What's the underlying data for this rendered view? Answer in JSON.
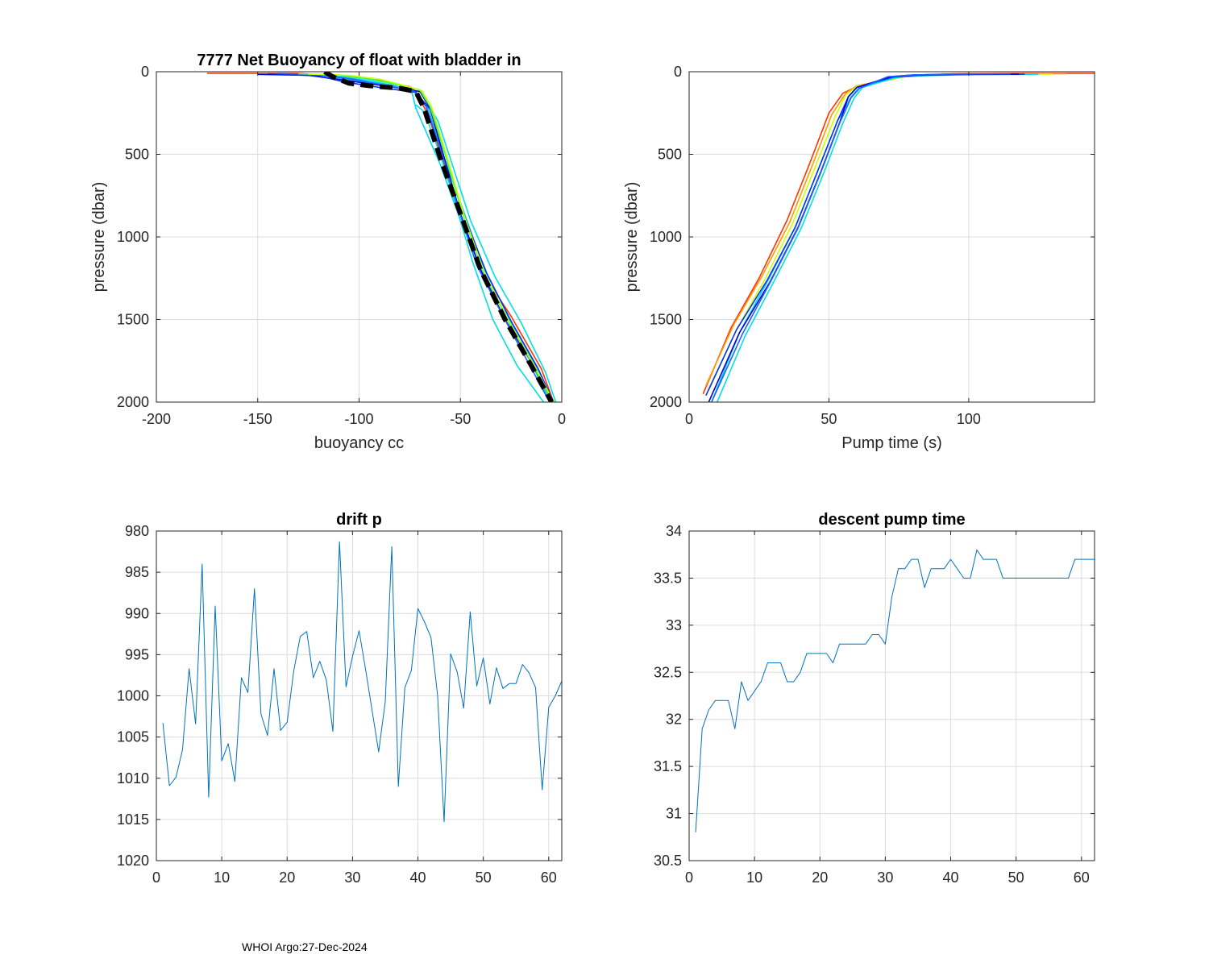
{
  "footer": "WHOI Argo:27-Dec-2024",
  "chart_data": [
    {
      "id": "buoyancy",
      "type": "line",
      "title": "7777 Net Buoyancy of float with bladder in",
      "xlabel": "buoyancy cc",
      "ylabel": "pressure (dbar)",
      "xlim": [
        -200,
        0
      ],
      "ylim": [
        0,
        2000
      ],
      "y_reversed": true,
      "xticks": [
        -200,
        -150,
        -100,
        -50,
        0
      ],
      "yticks": [
        0,
        500,
        1000,
        1500,
        2000
      ],
      "grid": true,
      "series": [
        {
          "color": "#ff3300",
          "x": [
            -175,
            -150,
            -130,
            -95,
            -75,
            -72,
            -66,
            -58,
            -50,
            -40,
            -25,
            -10,
            -4
          ],
          "y": [
            10,
            10,
            10,
            40,
            90,
            120,
            260,
            560,
            870,
            1200,
            1480,
            1800,
            2000
          ]
        },
        {
          "color": "#00e0e0",
          "x": [
            -150,
            -128,
            -100,
            -80,
            -70,
            -68,
            -61,
            -53,
            -45,
            -33,
            -20,
            -8,
            -3
          ],
          "y": [
            12,
            15,
            35,
            80,
            110,
            150,
            300,
            600,
            900,
            1240,
            1520,
            1820,
            2000
          ]
        },
        {
          "color": "#00d4ff",
          "x": [
            -150,
            -125,
            -100,
            -82,
            -74,
            -72,
            -60,
            -50,
            -38,
            -25,
            -15,
            -6
          ],
          "y": [
            15,
            20,
            45,
            85,
            120,
            220,
            560,
            900,
            1250,
            1520,
            1760,
            2000
          ]
        },
        {
          "color": "#1ab8e8",
          "x": [
            -148,
            -120,
            -105,
            -85,
            -72,
            -66,
            -58,
            -48,
            -38,
            -25,
            -13,
            -5
          ],
          "y": [
            14,
            18,
            50,
            80,
            120,
            220,
            520,
            860,
            1200,
            1510,
            1780,
            2000
          ]
        },
        {
          "color": "#0000cc",
          "x": [
            -150,
            -125,
            -105,
            -85,
            -70,
            -65,
            -58,
            -50,
            -40,
            -28,
            -15,
            -5
          ],
          "y": [
            16,
            22,
            55,
            90,
            120,
            220,
            520,
            860,
            1200,
            1500,
            1760,
            2000
          ]
        },
        {
          "color": "#0033ff",
          "x": [
            -145,
            -120,
            -108,
            -90,
            -72,
            -64,
            -56,
            -48,
            -37,
            -25,
            -12,
            -4
          ],
          "y": [
            12,
            25,
            60,
            95,
            125,
            240,
            560,
            880,
            1220,
            1510,
            1790,
            2000
          ]
        },
        {
          "color": "#2060ff",
          "x": [
            -140,
            -118,
            -102,
            -86,
            -73,
            -67,
            -59,
            -51,
            -42,
            -29,
            -17,
            -6
          ],
          "y": [
            10,
            20,
            48,
            86,
            118,
            210,
            500,
            830,
            1170,
            1480,
            1750,
            2000
          ]
        },
        {
          "color": "#40ff40",
          "x": [
            -130,
            -110,
            -95,
            -80,
            -70,
            -65,
            -57,
            -49,
            -39,
            -27,
            -14,
            -5
          ],
          "y": [
            12,
            20,
            42,
            80,
            112,
            210,
            520,
            860,
            1200,
            1500,
            1780,
            2000
          ]
        },
        {
          "color": "#ccff00",
          "x": [
            -125,
            -105,
            -90,
            -78,
            -69,
            -64,
            -56,
            -48,
            -38,
            -26,
            -13,
            -4
          ],
          "y": [
            14,
            22,
            45,
            82,
            115,
            220,
            540,
            880,
            1220,
            1510,
            1790,
            2000
          ]
        },
        {
          "color": "#00e0e0",
          "x": [
            -72,
            -68,
            -60,
            -52,
            -44,
            -34,
            -22,
            -9
          ],
          "y": [
            200,
            240,
            500,
            820,
            1150,
            1500,
            1780,
            2000
          ]
        },
        {
          "color": "#000000",
          "dashed": true,
          "width": 6,
          "x": [
            -117,
            -113,
            -105,
            -95,
            -80,
            -72,
            -68,
            -60,
            -50,
            -40,
            -28,
            -15,
            -5
          ],
          "y": [
            0,
            30,
            70,
            85,
            100,
            120,
            220,
            520,
            860,
            1200,
            1500,
            1780,
            2000
          ]
        }
      ]
    },
    {
      "id": "pump",
      "type": "line",
      "title": "",
      "xlabel": "Pump time (s)",
      "ylabel": "pressure (dbar)",
      "xlim": [
        0,
        145
      ],
      "ylim": [
        0,
        2000
      ],
      "y_reversed": true,
      "xticks": [
        0,
        50,
        100
      ],
      "yticks": [
        0,
        500,
        1000,
        1500,
        2000
      ],
      "grid": true,
      "series": [
        {
          "color": "#ff3300",
          "x": [
            145,
            120,
            95,
            80,
            60,
            55,
            50,
            43,
            35,
            25,
            15,
            5
          ],
          "y": [
            10,
            10,
            12,
            20,
            90,
            130,
            250,
            560,
            900,
            1250,
            1550,
            1950
          ]
        },
        {
          "color": "#ff9900",
          "x": [
            135,
            110,
            90,
            78,
            60,
            56,
            51,
            44,
            36,
            26,
            16,
            6
          ],
          "y": [
            12,
            14,
            18,
            25,
            85,
            130,
            260,
            570,
            910,
            1240,
            1530,
            1900
          ]
        },
        {
          "color": "#ccff00",
          "x": [
            130,
            105,
            88,
            77,
            60,
            56,
            52,
            45,
            37,
            27,
            17,
            7
          ],
          "y": [
            14,
            15,
            20,
            30,
            90,
            140,
            280,
            580,
            920,
            1260,
            1560,
            1930
          ]
        },
        {
          "color": "#00d4ff",
          "x": [
            125,
            100,
            85,
            75,
            61,
            58,
            53,
            46,
            38,
            28,
            18,
            8
          ],
          "y": [
            15,
            16,
            22,
            32,
            92,
            150,
            300,
            600,
            940,
            1270,
            1580,
            2000
          ]
        },
        {
          "color": "#00e0e0",
          "x": [
            120,
            100,
            84,
            74,
            62,
            59,
            55,
            48,
            40,
            30,
            20,
            10
          ],
          "y": [
            16,
            18,
            24,
            34,
            95,
            160,
            310,
            620,
            950,
            1280,
            1600,
            2000
          ]
        },
        {
          "color": "#0033ff",
          "x": [
            120,
            95,
            82,
            73,
            60,
            57,
            53,
            46,
            38,
            28,
            17,
            6
          ],
          "y": [
            15,
            17,
            22,
            32,
            95,
            150,
            300,
            600,
            940,
            1260,
            1560,
            1960
          ]
        },
        {
          "color": "#0000cc",
          "x": [
            118,
            95,
            80,
            72,
            60,
            57,
            54,
            47,
            39,
            29,
            18,
            7
          ],
          "y": [
            14,
            16,
            20,
            30,
            95,
            150,
            300,
            610,
            940,
            1270,
            1580,
            2000
          ]
        },
        {
          "color": "#2060ff",
          "x": [
            115,
            92,
            80,
            71,
            61,
            58,
            54,
            47,
            39,
            29,
            19,
            8
          ],
          "y": [
            13,
            15,
            20,
            30,
            100,
            155,
            305,
            615,
            945,
            1275,
            1590,
            2000
          ]
        }
      ]
    },
    {
      "id": "drift",
      "type": "line",
      "title": "drift p",
      "xlabel": "",
      "ylabel": "",
      "xlim": [
        0,
        62
      ],
      "ylim": [
        980,
        1020
      ],
      "y_reversed": true,
      "xticks": [
        0,
        10,
        20,
        30,
        40,
        50,
        60
      ],
      "yticks": [
        980,
        985,
        990,
        995,
        1000,
        1005,
        1010,
        1015,
        1020
      ],
      "grid": true,
      "series": [
        {
          "color": "#0072BD",
          "x": [
            1,
            2,
            3,
            4,
            5,
            6,
            7,
            8,
            9,
            10,
            11,
            12,
            13,
            14,
            15,
            16,
            17,
            18,
            19,
            20,
            21,
            22,
            23,
            24,
            25,
            26,
            27,
            28,
            29,
            30,
            31,
            32,
            33,
            34,
            35,
            36,
            37,
            38,
            39,
            40,
            41,
            42,
            43,
            44,
            45,
            46,
            47,
            48,
            49,
            50,
            51,
            52,
            53,
            54,
            55,
            56,
            57,
            58,
            59,
            60,
            61,
            62
          ],
          "y": [
            1003.3,
            1010.9,
            1009.9,
            1006.5,
            996.7,
            1003.4,
            984.0,
            1012.3,
            989.1,
            1007.9,
            1005.8,
            1010.4,
            997.8,
            999.6,
            987.0,
            1002.2,
            1004.8,
            996.7,
            1004.2,
            1003.2,
            997.0,
            992.8,
            992.2,
            997.8,
            995.8,
            998.1,
            1004.3,
            981.3,
            998.9,
            995.2,
            992.1,
            996.8,
            1001.8,
            1006.8,
            1000.7,
            981.9,
            1011.0,
            999.0,
            996.9,
            989.4,
            991.0,
            992.9,
            999.9,
            1015.3,
            994.9,
            997.1,
            1001.5,
            989.8,
            998.8,
            995.4,
            1001.0,
            996.6,
            999.1,
            998.5,
            998.5,
            996.2,
            997.2,
            999.0,
            1011.4,
            1001.4,
            1000.0,
            998.2
          ]
        }
      ]
    },
    {
      "id": "descent",
      "type": "line",
      "title": "descent pump time",
      "xlabel": "",
      "ylabel": "",
      "xlim": [
        0,
        62
      ],
      "ylim": [
        30.5,
        34
      ],
      "y_reversed": false,
      "xticks": [
        0,
        10,
        20,
        30,
        40,
        50,
        60
      ],
      "yticks": [
        30.5,
        31,
        31.5,
        32,
        32.5,
        33,
        33.5,
        34
      ],
      "grid": true,
      "series": [
        {
          "color": "#0072BD",
          "x": [
            1,
            2,
            3,
            4,
            5,
            6,
            7,
            8,
            9,
            10,
            11,
            12,
            13,
            14,
            15,
            16,
            17,
            18,
            19,
            20,
            21,
            22,
            23,
            24,
            25,
            26,
            27,
            28,
            29,
            30,
            31,
            32,
            33,
            34,
            35,
            36,
            37,
            38,
            39,
            40,
            41,
            42,
            43,
            44,
            45,
            46,
            47,
            48,
            49,
            50,
            51,
            52,
            53,
            54,
            55,
            56,
            57,
            58,
            59,
            60,
            61,
            62
          ],
          "y": [
            30.8,
            31.9,
            32.1,
            32.2,
            32.2,
            32.2,
            31.9,
            32.4,
            32.2,
            32.3,
            32.4,
            32.6,
            32.6,
            32.6,
            32.4,
            32.4,
            32.5,
            32.7,
            32.7,
            32.7,
            32.7,
            32.6,
            32.8,
            32.8,
            32.8,
            32.8,
            32.8,
            32.9,
            32.9,
            32.8,
            33.3,
            33.6,
            33.6,
            33.7,
            33.7,
            33.4,
            33.6,
            33.6,
            33.6,
            33.7,
            33.6,
            33.5,
            33.5,
            33.8,
            33.7,
            33.7,
            33.7,
            33.5,
            33.5,
            33.5,
            33.5,
            33.5,
            33.5,
            33.5,
            33.5,
            33.5,
            33.5,
            33.5,
            33.7,
            33.7,
            33.7,
            33.7
          ]
        }
      ]
    }
  ]
}
